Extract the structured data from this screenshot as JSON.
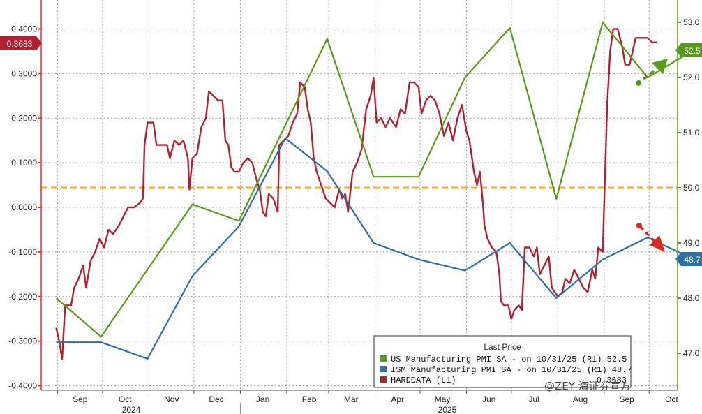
{
  "chart_data": {
    "type": "line",
    "x_month_labels": [
      "Sep",
      "Oct",
      "Nov",
      "Dec",
      "Jan",
      "Feb",
      "Mar",
      "Apr",
      "May",
      "Jun",
      "Jul",
      "Aug",
      "Sep",
      "Oct"
    ],
    "year_labels": [
      "2024",
      "2025"
    ],
    "left_axis": {
      "ticks": [
        "0.4000",
        "0.3000",
        "0.2000",
        "0.1000",
        "0.0000",
        "-0.1000",
        "-0.2000",
        "-0.3000",
        "-0.4000"
      ],
      "range": [
        -0.4,
        0.4
      ]
    },
    "right_axis": {
      "ticks": [
        "53.0",
        "52.0",
        "51.0",
        "50.0",
        "49.0",
        "48.0",
        "47.0"
      ],
      "range": [
        47.0,
        53.0
      ]
    },
    "reference_line": {
      "axis": "right",
      "value": 50.0,
      "color": "#f5a623",
      "style": "dashed"
    },
    "legend": {
      "title": "Last Price",
      "entries": [
        {
          "label": "US Manufacturing PMI SA -  on 10/31/25  (R1)  52.5",
          "color": "#5a9a1b"
        },
        {
          "label": "ISM Manufacturing PMI SA -  on 10/31/25  (R1)  48.7",
          "color": "#2e6fa5"
        },
        {
          "label": "HARDDATA  (L1)",
          "color": "#b02232",
          "value": "0.3683"
        }
      ]
    },
    "last_value_badges": {
      "left": "0.3683",
      "right_green": "52.5",
      "right_blue": "48.7"
    },
    "series": [
      {
        "name": "US Manufacturing PMI SA",
        "axis": "right",
        "color": "#5a9a1b",
        "points": [
          [
            "2024-08-31",
            48.0
          ],
          [
            "2024-09-30",
            47.3
          ],
          [
            "2024-11-30",
            49.7
          ],
          [
            "2024-12-31",
            49.4
          ],
          [
            "2025-02-28",
            52.7
          ],
          [
            "2025-03-31",
            50.2
          ],
          [
            "2025-04-30",
            50.2
          ],
          [
            "2025-05-31",
            52.0
          ],
          [
            "2025-06-30",
            52.9
          ],
          [
            "2025-07-31",
            49.8
          ],
          [
            "2025-08-31",
            53.0
          ],
          [
            "2025-09-30",
            52.0
          ],
          [
            "2025-10-31",
            52.5
          ]
        ]
      },
      {
        "name": "ISM Manufacturing PMI SA",
        "axis": "right",
        "color": "#2e6fa5",
        "points": [
          [
            "2024-08-31",
            47.2
          ],
          [
            "2024-09-30",
            47.2
          ],
          [
            "2024-10-31",
            46.9
          ],
          [
            "2024-11-30",
            48.4
          ],
          [
            "2024-12-31",
            49.3
          ],
          [
            "2025-01-31",
            50.9
          ],
          [
            "2025-02-28",
            50.3
          ],
          [
            "2025-03-31",
            49.0
          ],
          [
            "2025-04-30",
            48.7
          ],
          [
            "2025-05-31",
            48.5
          ],
          [
            "2025-06-30",
            49.0
          ],
          [
            "2025-07-31",
            48.0
          ],
          [
            "2025-08-31",
            48.7
          ],
          [
            "2025-09-30",
            49.1
          ],
          [
            "2025-10-31",
            48.7
          ]
        ]
      },
      {
        "name": "HARDDATA",
        "axis": "left",
        "color": "#b02232",
        "points": [
          [
            "2024-08-31",
            -0.27
          ],
          [
            "2024-09-02",
            -0.3
          ],
          [
            "2024-09-04",
            -0.34
          ],
          [
            "2024-09-06",
            -0.22
          ],
          [
            "2024-09-10",
            -0.22
          ],
          [
            "2024-09-12",
            -0.18
          ],
          [
            "2024-09-15",
            -0.16
          ],
          [
            "2024-09-18",
            -0.13
          ],
          [
            "2024-09-20",
            -0.18
          ],
          [
            "2024-09-23",
            -0.12
          ],
          [
            "2024-09-26",
            -0.1
          ],
          [
            "2024-09-29",
            -0.07
          ],
          [
            "2024-10-02",
            -0.09
          ],
          [
            "2024-10-05",
            -0.05
          ],
          [
            "2024-10-08",
            -0.06
          ],
          [
            "2024-10-12",
            -0.04
          ],
          [
            "2024-10-15",
            -0.02
          ],
          [
            "2024-10-18",
            0.0
          ],
          [
            "2024-10-22",
            0.0
          ],
          [
            "2024-10-26",
            0.01
          ],
          [
            "2024-10-28",
            0.02
          ],
          [
            "2024-10-29",
            0.14
          ],
          [
            "2024-10-31",
            0.19
          ],
          [
            "2024-11-04",
            0.19
          ],
          [
            "2024-11-06",
            0.14
          ],
          [
            "2024-11-10",
            0.14
          ],
          [
            "2024-11-13",
            0.14
          ],
          [
            "2024-11-15",
            0.11
          ],
          [
            "2024-11-18",
            0.15
          ],
          [
            "2024-11-21",
            0.14
          ],
          [
            "2024-11-24",
            0.15
          ],
          [
            "2024-11-27",
            0.11
          ],
          [
            "2024-11-28",
            0.04
          ],
          [
            "2024-11-30",
            0.11
          ],
          [
            "2024-12-03",
            0.12
          ],
          [
            "2024-12-06",
            0.18
          ],
          [
            "2024-12-09",
            0.2
          ],
          [
            "2024-12-11",
            0.26
          ],
          [
            "2024-12-14",
            0.25
          ],
          [
            "2024-12-17",
            0.24
          ],
          [
            "2024-12-20",
            0.24
          ],
          [
            "2024-12-22",
            0.15
          ],
          [
            "2024-12-24",
            0.14
          ],
          [
            "2024-12-26",
            0.09
          ],
          [
            "2024-12-28",
            0.08
          ],
          [
            "2024-12-31",
            0.08
          ],
          [
            "2025-01-03",
            0.1
          ],
          [
            "2025-01-06",
            0.11
          ],
          [
            "2025-01-09",
            0.1
          ],
          [
            "2025-01-12",
            0.06
          ],
          [
            "2025-01-14",
            0.04
          ],
          [
            "2025-01-16",
            -0.01
          ],
          [
            "2025-01-18",
            -0.02
          ],
          [
            "2025-01-20",
            0.03
          ],
          [
            "2025-01-23",
            0.02
          ],
          [
            "2025-01-26",
            -0.01
          ],
          [
            "2025-01-27",
            0.14
          ],
          [
            "2025-01-30",
            0.15
          ],
          [
            "2025-02-02",
            0.16
          ],
          [
            "2025-02-05",
            0.19
          ],
          [
            "2025-02-08",
            0.21
          ],
          [
            "2025-02-10",
            0.28
          ],
          [
            "2025-02-13",
            0.27
          ],
          [
            "2025-02-15",
            0.22
          ],
          [
            "2025-02-17",
            0.19
          ],
          [
            "2025-02-19",
            0.11
          ],
          [
            "2025-02-21",
            0.08
          ],
          [
            "2025-02-24",
            0.05
          ],
          [
            "2025-02-27",
            0.02
          ],
          [
            "2025-03-02",
            0.01
          ],
          [
            "2025-03-05",
            0.0
          ],
          [
            "2025-03-08",
            0.04
          ],
          [
            "2025-03-10",
            0.02
          ],
          [
            "2025-03-12",
            0.03
          ],
          [
            "2025-03-14",
            -0.01
          ],
          [
            "2025-03-17",
            0.08
          ],
          [
            "2025-03-20",
            0.1
          ],
          [
            "2025-03-23",
            0.13
          ],
          [
            "2025-03-26",
            0.22
          ],
          [
            "2025-03-29",
            0.25
          ],
          [
            "2025-03-31",
            0.29
          ],
          [
            "2025-04-02",
            0.19
          ],
          [
            "2025-04-05",
            0.2
          ],
          [
            "2025-04-08",
            0.18
          ],
          [
            "2025-04-11",
            0.2
          ],
          [
            "2025-04-15",
            0.18
          ],
          [
            "2025-04-18",
            0.22
          ],
          [
            "2025-04-21",
            0.21
          ],
          [
            "2025-04-24",
            0.28
          ],
          [
            "2025-04-27",
            0.28
          ],
          [
            "2025-04-30",
            0.27
          ],
          [
            "2025-05-02",
            0.21
          ],
          [
            "2025-05-05",
            0.24
          ],
          [
            "2025-05-08",
            0.25
          ],
          [
            "2025-05-11",
            0.24
          ],
          [
            "2025-05-14",
            0.21
          ],
          [
            "2025-05-17",
            0.16
          ],
          [
            "2025-05-20",
            0.19
          ],
          [
            "2025-05-23",
            0.15
          ],
          [
            "2025-05-26",
            0.2
          ],
          [
            "2025-05-29",
            0.23
          ],
          [
            "2025-06-01",
            0.17
          ],
          [
            "2025-06-03",
            0.15
          ],
          [
            "2025-06-06",
            0.08
          ],
          [
            "2025-06-08",
            0.05
          ],
          [
            "2025-06-10",
            0.08
          ],
          [
            "2025-06-12",
            0.01
          ],
          [
            "2025-06-13",
            -0.04
          ],
          [
            "2025-06-15",
            -0.07
          ],
          [
            "2025-06-18",
            -0.09
          ],
          [
            "2025-06-21",
            -0.1
          ],
          [
            "2025-06-23",
            -0.15
          ],
          [
            "2025-06-24",
            -0.21
          ],
          [
            "2025-06-26",
            -0.22
          ],
          [
            "2025-06-29",
            -0.22
          ],
          [
            "2025-07-01",
            -0.25
          ],
          [
            "2025-07-03",
            -0.23
          ],
          [
            "2025-07-06",
            -0.22
          ],
          [
            "2025-07-08",
            -0.23
          ],
          [
            "2025-07-10",
            -0.09
          ],
          [
            "2025-07-13",
            -0.09
          ],
          [
            "2025-07-16",
            -0.11
          ],
          [
            "2025-07-18",
            -0.09
          ],
          [
            "2025-07-20",
            -0.15
          ],
          [
            "2025-07-23",
            -0.13
          ],
          [
            "2025-07-26",
            -0.11
          ],
          [
            "2025-07-28",
            -0.18
          ],
          [
            "2025-07-30",
            -0.19
          ],
          [
            "2025-08-01",
            -0.2
          ],
          [
            "2025-08-04",
            -0.19
          ],
          [
            "2025-08-06",
            -0.16
          ],
          [
            "2025-08-09",
            -0.17
          ],
          [
            "2025-08-12",
            -0.14
          ],
          [
            "2025-08-15",
            -0.16
          ],
          [
            "2025-08-18",
            -0.18
          ],
          [
            "2025-08-21",
            -0.19
          ],
          [
            "2025-08-24",
            -0.14
          ],
          [
            "2025-08-26",
            -0.16
          ],
          [
            "2025-08-28",
            -0.09
          ],
          [
            "2025-08-31",
            -0.1
          ],
          [
            "2025-09-03",
            0.23
          ],
          [
            "2025-09-05",
            0.35
          ],
          [
            "2025-09-07",
            0.4
          ],
          [
            "2025-09-10",
            0.4
          ],
          [
            "2025-09-13",
            0.36
          ],
          [
            "2025-09-15",
            0.32
          ],
          [
            "2025-09-18",
            0.32
          ],
          [
            "2025-09-22",
            0.38
          ],
          [
            "2025-09-27",
            0.38
          ],
          [
            "2025-09-30",
            0.38
          ],
          [
            "2025-10-03",
            0.37
          ],
          [
            "2025-10-06",
            0.37
          ]
        ]
      }
    ]
  },
  "watermark": "@ZEY 海证券宣方"
}
